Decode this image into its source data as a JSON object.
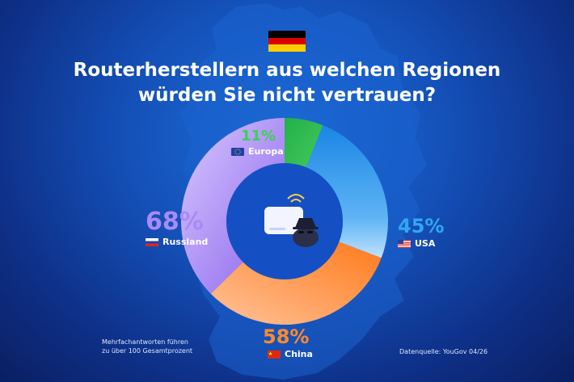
{
  "title_line1": "Routerherstellern aus welchen Regionen",
  "title_line2": "würden Sie nicht vertrauen?",
  "footnote_line1": "Mehrfachantworten führen",
  "footnote_line2": "zu über 100 Gesamtprozent",
  "source": "Datenquelle: YouGov 04/26",
  "icons": {
    "flag": "germany-flag-icon",
    "center": "router-spy-icon"
  },
  "colors": {
    "europe": "#2fbf4a",
    "usa": "#1f8ee8",
    "china": "#ff8a2b",
    "russia": "#9b7bf0",
    "map": "#1c63cf"
  },
  "chart_data": {
    "type": "pie",
    "categories": [
      "Europa",
      "USA",
      "China",
      "Russland"
    ],
    "values": [
      11,
      45,
      58,
      68
    ],
    "value_labels": [
      "11%",
      "45%",
      "58%",
      "68%"
    ],
    "colors": [
      "#2fbf4a",
      "#1f8ee8",
      "#ff8a2b",
      "#9b7bf0"
    ],
    "title": "Routerherstellern aus welchen Regionen würden Sie nicht vertrauen?"
  }
}
